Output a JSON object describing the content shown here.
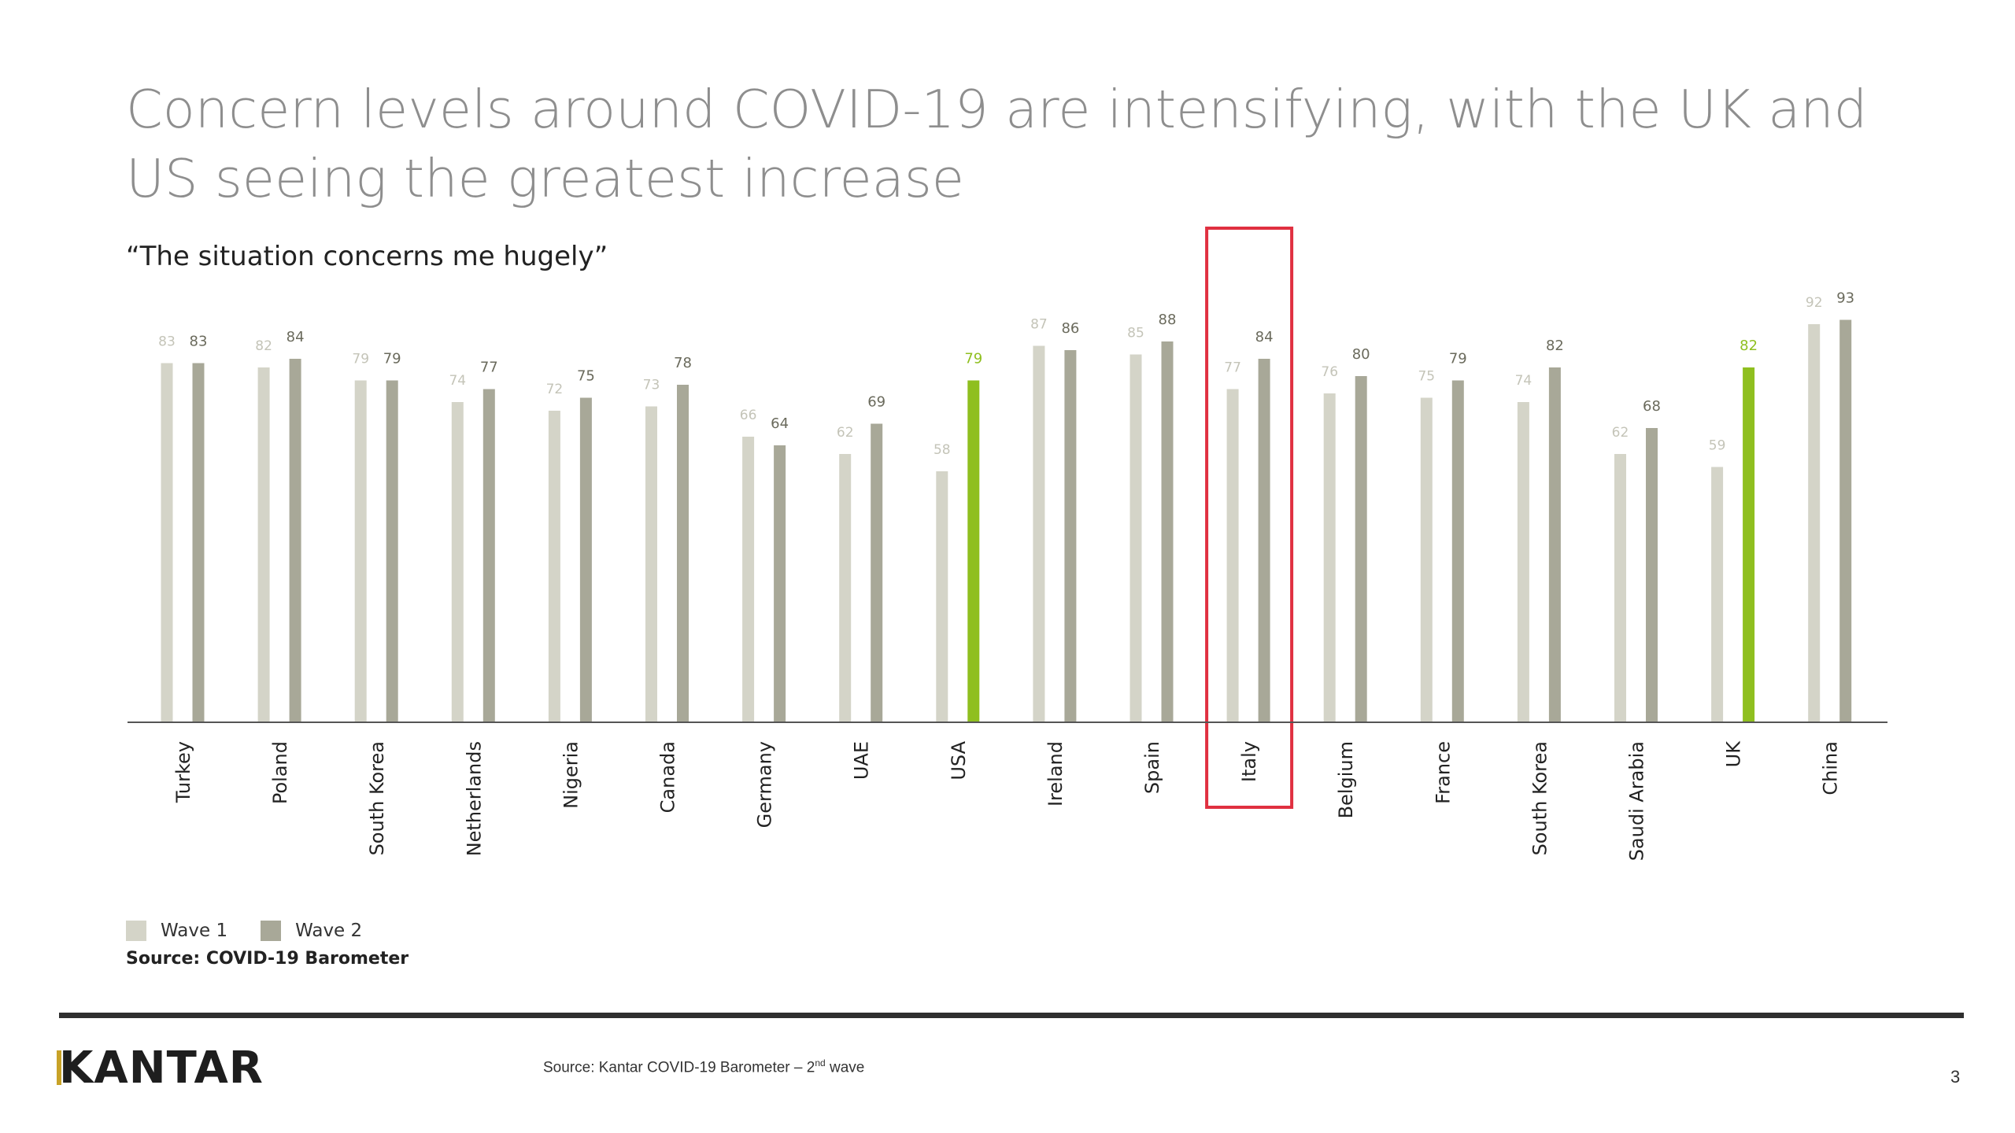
{
  "title": "Concern levels around COVID-19 are intensifying, with the UK and US seeing the greatest increase",
  "subtitle": "“The situation concerns me hugely”",
  "legend": {
    "wave1": "Wave 1",
    "wave2": "Wave 2"
  },
  "source_note": "Source: COVID-19 Barometer",
  "footer": {
    "logo": "KANTAR",
    "source_prefix": "Source: Kantar COVID-19 Barometer – 2",
    "source_sup": "nd",
    "source_suffix": " wave",
    "page_number": "3"
  },
  "colors": {
    "wave1": "#d4d4c8",
    "wave2": "#a8a898",
    "highlight": "#8fbf1f",
    "label_wave1": "#c4c4b8",
    "label_wave2": "#6a6a5c",
    "axis": "#555555",
    "highlight_box": "#e03040"
  },
  "chart_data": {
    "type": "bar",
    "categories": [
      "Turkey",
      "Poland",
      "South Korea",
      "Netherlands",
      "Nigeria",
      "Canada",
      "Germany",
      "UAE",
      "USA",
      "Ireland",
      "Spain",
      "Italy",
      "Belgium",
      "France",
      "South Korea",
      "Saudi Arabia",
      "UK",
      "China"
    ],
    "series": [
      {
        "name": "Wave 1",
        "values": [
          83,
          82,
          79,
          74,
          72,
          73,
          66,
          62,
          58,
          87,
          85,
          77,
          76,
          75,
          74,
          62,
          59,
          92
        ]
      },
      {
        "name": "Wave 2",
        "values": [
          83,
          84,
          79,
          77,
          75,
          78,
          64,
          69,
          79,
          86,
          88,
          84,
          80,
          79,
          82,
          68,
          82,
          93
        ]
      }
    ],
    "highlighted_wave2": [
      "USA",
      "UK"
    ],
    "boxed_category": "Italy",
    "ylim": [
      0,
      100
    ],
    "grid": false,
    "legend_position": "bottom-left"
  }
}
